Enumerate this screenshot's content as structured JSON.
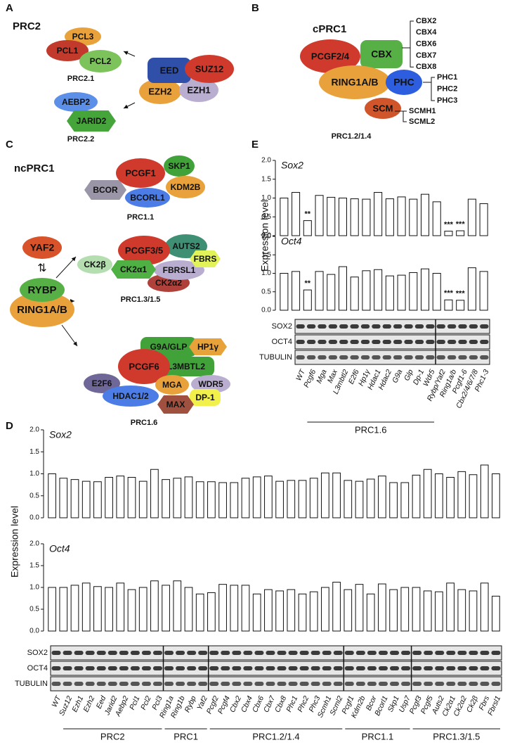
{
  "panel_a": {
    "label": "A",
    "title": "PRC2",
    "core": [
      "EED",
      "SUZ12",
      "EZH2",
      "EZH1"
    ],
    "prc21": {
      "nodes": [
        "PCL3",
        "PCL1",
        "PCL2"
      ],
      "name": "PRC2.1"
    },
    "prc22": {
      "nodes": [
        "AEBP2",
        "JARID2"
      ],
      "name": "PRC2.2"
    }
  },
  "panel_b": {
    "label": "B",
    "title": "cPRC1",
    "nodes": [
      "PCGF2/4",
      "CBX",
      "RING1A/B",
      "PHC",
      "SCM"
    ],
    "cbx": [
      "CBX2",
      "CBX4",
      "CBX6",
      "CBX7",
      "CBX8"
    ],
    "phc": [
      "PHC1",
      "PHC2",
      "PHC3"
    ],
    "scm": [
      "SCMH1",
      "SCML2"
    ],
    "name": "PRC1.2/1.4"
  },
  "panel_c": {
    "label": "C",
    "title": "ncPRC1",
    "core": [
      "YAF2",
      "RYBP",
      "RING1A/B"
    ],
    "prc11": {
      "nodes": [
        "PCGF1",
        "SKP1",
        "KDM2B",
        "BCOR",
        "BCORL1"
      ],
      "name": "PRC1.1"
    },
    "prc135": {
      "nodes": [
        "PCGF3/5",
        "AUTS2",
        "FBRS",
        "CK2β",
        "CK2α1",
        "FBRSL1",
        "CK2α2"
      ],
      "name": "PRC1.3/1.5"
    },
    "prc16": {
      "nodes": [
        "G9A/GLP",
        "HP1γ",
        "PCGF6",
        "L3MBTL2",
        "E2F6",
        "MGA",
        "WDR5",
        "HDAC1/2",
        "DP-1",
        "MAX"
      ],
      "name": "PRC1.6"
    }
  },
  "panel_e": {
    "label": "E",
    "y_label": "Expression level",
    "categories": [
      "WT",
      "Pcgf6",
      "Mga",
      "Max",
      "L3mbtl2",
      "E2f6",
      "Hp1γ",
      "Hdac1",
      "Hdac2",
      "G9a",
      "Glp",
      "Dp-1",
      "Wdr5",
      "Rybp/Yaf2",
      "Ring1a/b",
      "Pcgf1-6",
      "Cbx2/4/6/7/8",
      "Phc1-3"
    ],
    "charts": [
      {
        "type": "bar",
        "gene": "Sox2",
        "values": [
          1.0,
          1.15,
          0.4,
          1.07,
          1.02,
          1.0,
          0.98,
          0.97,
          1.15,
          0.98,
          1.03,
          0.97,
          1.1,
          0.9,
          0.12,
          0.13,
          0.97,
          0.85
        ],
        "significance": [
          null,
          null,
          "**",
          null,
          null,
          null,
          null,
          null,
          null,
          null,
          null,
          null,
          null,
          null,
          "***",
          "***",
          null,
          null
        ],
        "ylim": [
          0,
          2
        ],
        "yticks": [
          {
            "value": 0,
            "label": "0.0"
          },
          0.5,
          {
            "value": 1,
            "label": "1.0"
          },
          1.5,
          {
            "value": 2,
            "label": "2.0"
          }
        ]
      },
      {
        "type": "bar",
        "gene": "Oct4",
        "values": [
          1.0,
          1.05,
          0.55,
          1.05,
          0.97,
          1.18,
          0.9,
          1.07,
          1.1,
          0.93,
          0.95,
          1.02,
          1.12,
          1.0,
          0.28,
          0.27,
          1.15,
          1.05
        ],
        "significance": [
          null,
          null,
          "**",
          null,
          null,
          null,
          null,
          null,
          null,
          null,
          null,
          null,
          null,
          null,
          "***",
          "***",
          null,
          null
        ],
        "ylim": [
          0,
          2
        ],
        "yticks": [
          {
            "value": 0,
            "label": "0.0"
          },
          0.5,
          {
            "value": 1,
            "label": "1.0"
          },
          1.5,
          {
            "value": 2,
            "label": "2.0"
          }
        ]
      }
    ],
    "blots": [
      "SOX2",
      "OCT4",
      "TUBULIN"
    ],
    "groups": [
      {
        "name": "PRC1.6",
        "span": [
          1,
          12
        ]
      }
    ]
  },
  "panel_d": {
    "label": "D",
    "y_label": "Expression level",
    "categories": [
      "WT",
      "Suz12",
      "Ezh1",
      "Ezh2",
      "Eed",
      "Jarid2",
      "Aebp2",
      "Pcl1",
      "Pcl2",
      "Pcl3",
      "Ring1a",
      "Ring1b",
      "Rybp",
      "Yaf2",
      "Pcgf2",
      "Pcgf4",
      "Cbx2",
      "Cbx4",
      "Cbx6",
      "Cbx7",
      "Cbx8",
      "Phc1",
      "Phc2",
      "Phc3",
      "Scmh1",
      "Scml2",
      "Pcgf1",
      "Kdm2b",
      "Bcor",
      "Bcorl1",
      "Skp1",
      "Usp7",
      "Pcgf3",
      "Pcgf5",
      "Auts2",
      "Ck2α1",
      "Ck2α2",
      "Ck2β",
      "Fbrs",
      "Fbrsl1"
    ],
    "charts": [
      {
        "type": "bar",
        "gene": "Sox2",
        "values": [
          1.0,
          0.9,
          0.87,
          0.83,
          0.82,
          0.92,
          0.95,
          0.92,
          0.83,
          1.1,
          0.87,
          0.9,
          0.93,
          0.82,
          0.82,
          0.8,
          0.8,
          0.9,
          0.93,
          0.95,
          0.83,
          0.85,
          0.85,
          0.9,
          1.02,
          1.02,
          0.85,
          0.83,
          0.88,
          0.95,
          0.8,
          0.8,
          0.97,
          1.1,
          1.0,
          0.92,
          1.05,
          0.98,
          1.2,
          1.0
        ],
        "ylim": [
          0,
          2
        ],
        "yticks": [
          {
            "value": 0,
            "label": "0.0"
          },
          0.5,
          {
            "value": 1,
            "label": "1.0"
          },
          1.5,
          {
            "value": 2,
            "label": "2.0"
          }
        ]
      },
      {
        "type": "bar",
        "gene": "Oct4",
        "values": [
          1.0,
          1.0,
          1.05,
          1.1,
          1.02,
          1.0,
          1.1,
          0.95,
          1.0,
          1.15,
          1.05,
          1.15,
          1.0,
          0.85,
          0.88,
          1.07,
          1.05,
          1.05,
          0.85,
          0.95,
          0.92,
          0.95,
          0.85,
          0.9,
          1.0,
          1.12,
          0.95,
          1.07,
          0.85,
          1.08,
          0.95,
          1.0,
          1.0,
          0.92,
          0.9,
          1.1,
          0.95,
          0.92,
          1.1,
          0.8
        ],
        "ylim": [
          0,
          2
        ],
        "yticks": [
          {
            "value": 0,
            "label": "0.0"
          },
          0.5,
          {
            "value": 1,
            "label": "1.0"
          },
          1.5,
          {
            "value": 2,
            "label": "2.0"
          }
        ]
      }
    ],
    "blots": [
      "SOX2",
      "OCT4",
      "TUBULIN"
    ],
    "groups": [
      {
        "name": "PRC2",
        "span": [
          1,
          9
        ]
      },
      {
        "name": "PRC1",
        "span": [
          10,
          13
        ]
      },
      {
        "name": "PRC1.2/1.4",
        "span": [
          14,
          25
        ]
      },
      {
        "name": "PRC1.1",
        "span": [
          26,
          31
        ]
      },
      {
        "name": "PRC1.3/1.5",
        "span": [
          32,
          39
        ]
      }
    ]
  }
}
